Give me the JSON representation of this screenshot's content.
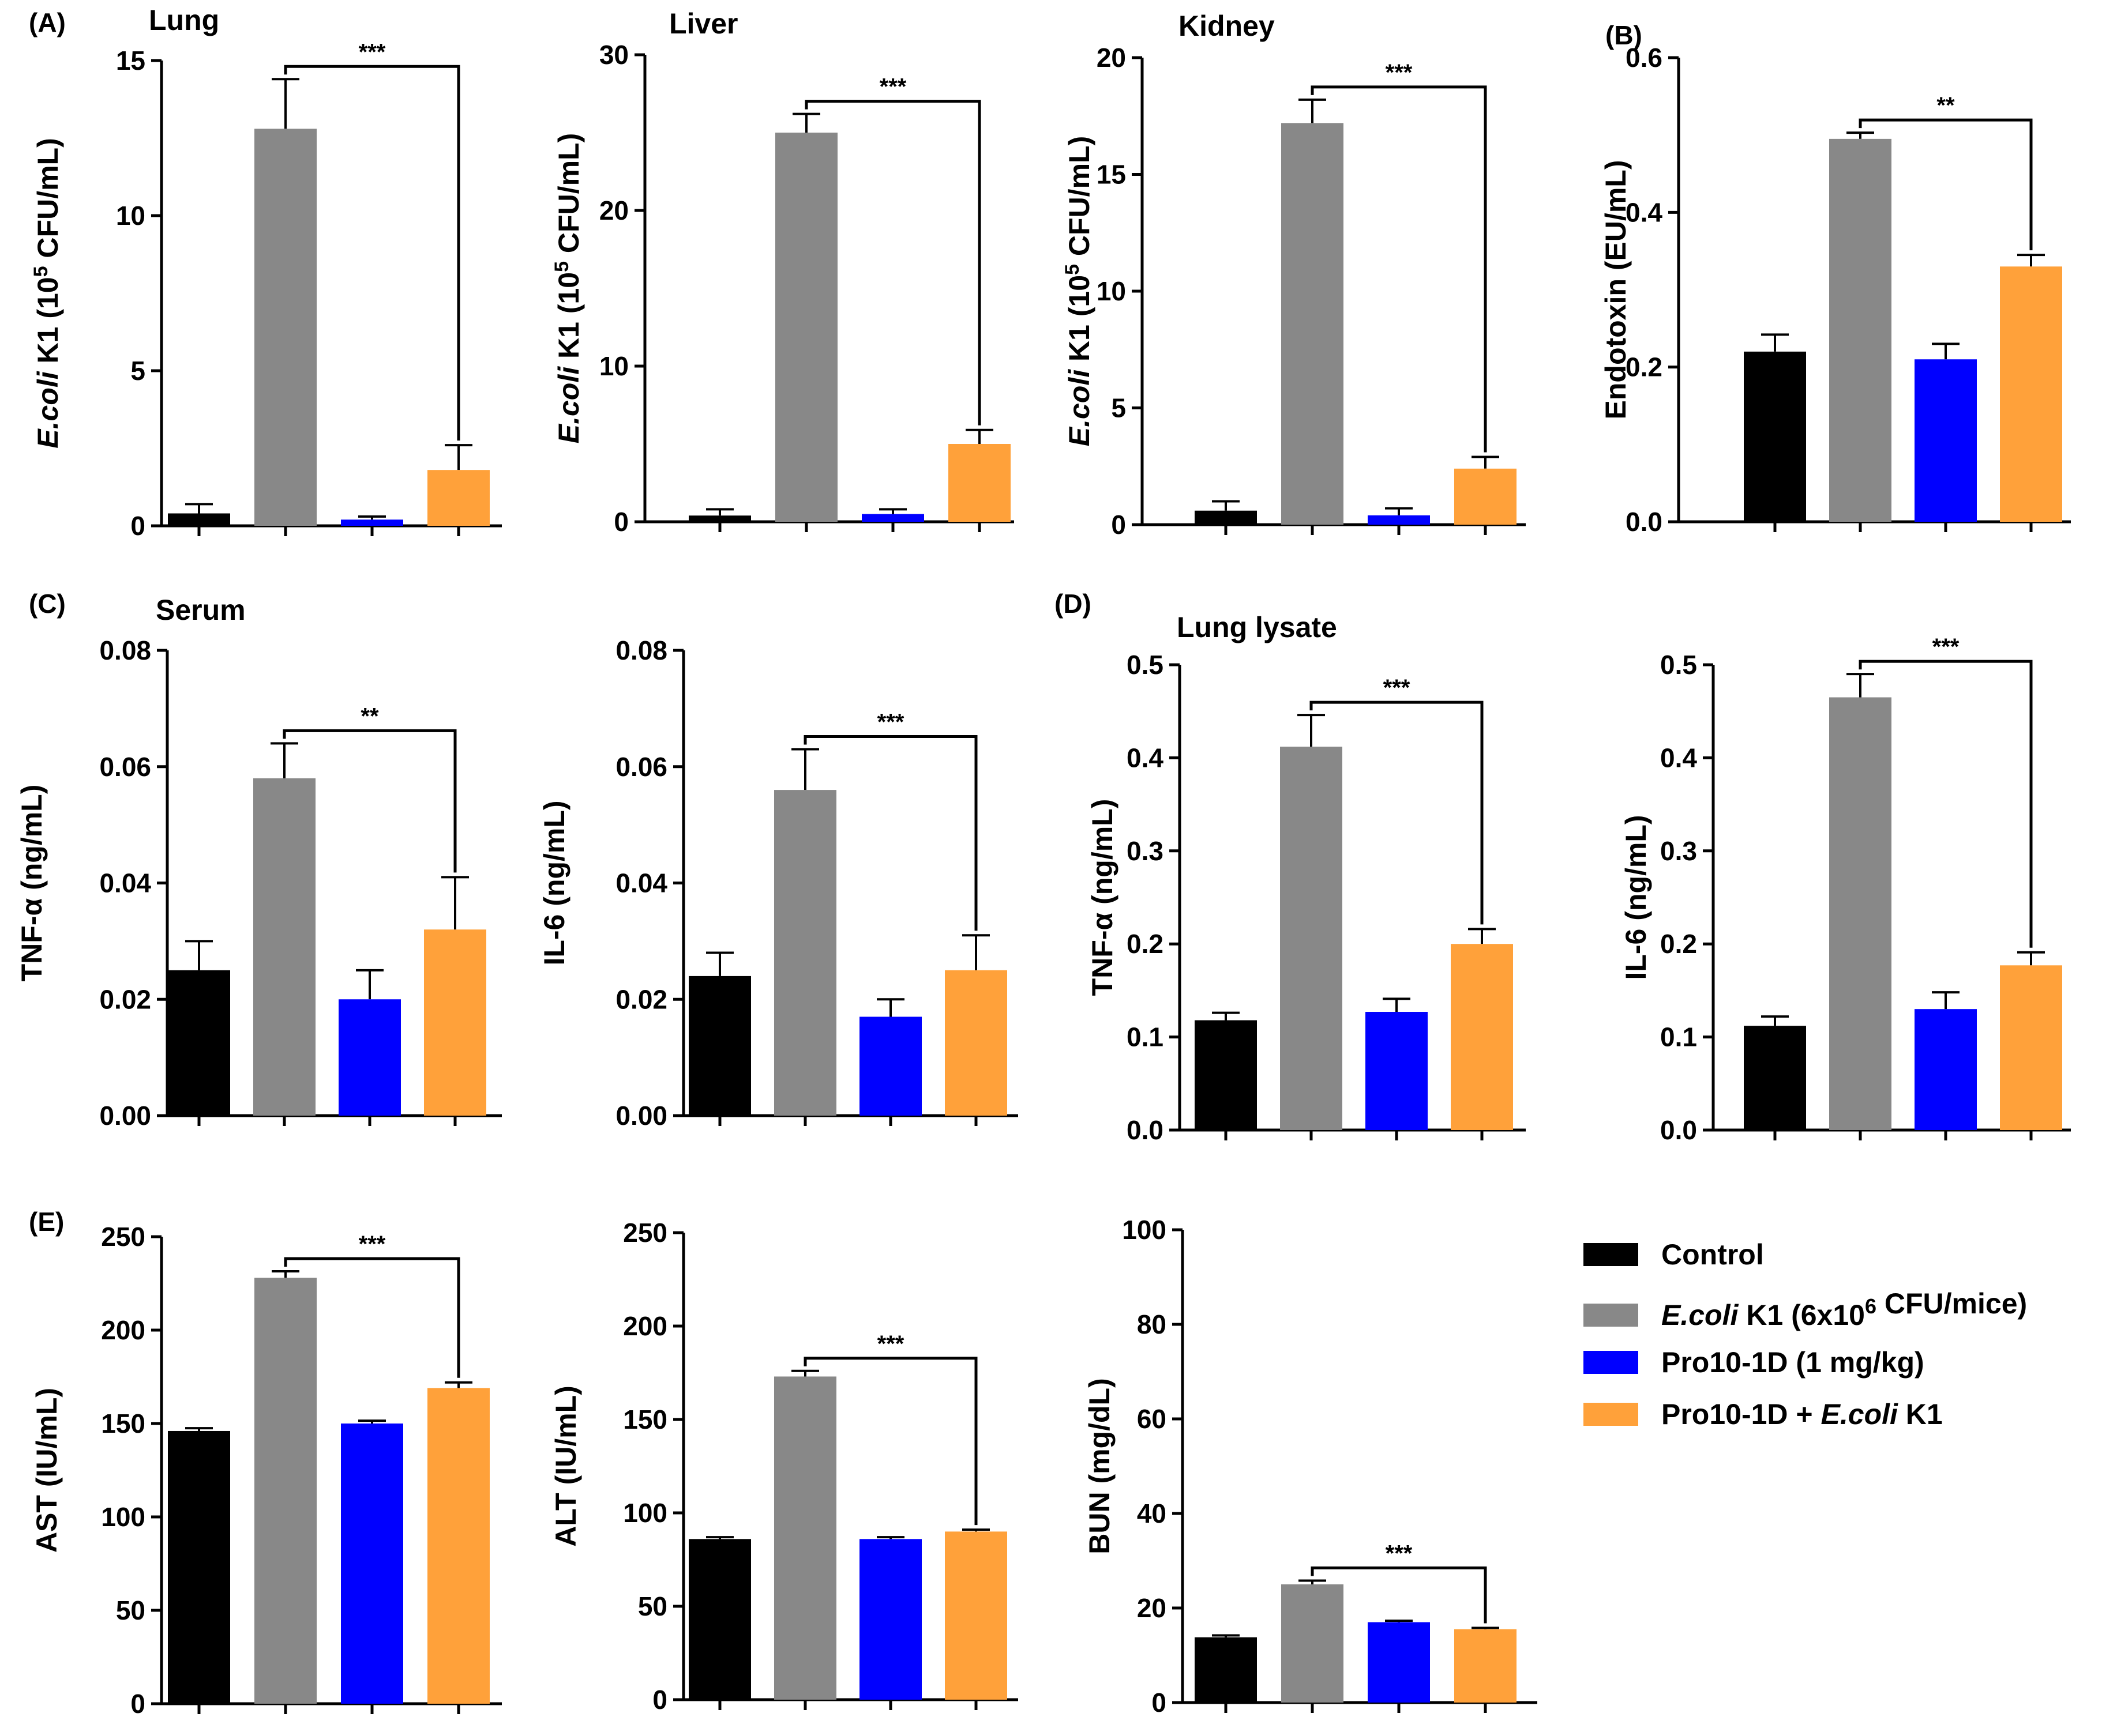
{
  "chart_data": [
    {
      "panel_id": "lung",
      "type": "bar",
      "panel_label": "(A)",
      "title": "Lung",
      "ylabel_prefix": "E.coli",
      "ylabel_text": " K1 (10",
      "ylabel_sup": "5",
      "ylabel_suffix": " CFU/mL)",
      "ylim": [
        0,
        15
      ],
      "yticks": [
        "0",
        "5",
        "10",
        "15"
      ],
      "categories": [
        "Control",
        "E.coli K1 (6x10^6 CFU/mice)",
        "Pro10-1D (1 mg/kg)",
        "Pro10-1D + E.coli K1"
      ],
      "values": [
        0.4,
        12.8,
        0.2,
        1.8
      ],
      "errors": [
        0.3,
        1.6,
        0.1,
        0.8
      ],
      "significance": {
        "from": 1,
        "to": 3,
        "label": "***"
      }
    },
    {
      "panel_id": "liver",
      "type": "bar",
      "title": "Liver",
      "ylabel_prefix": "E.coli",
      "ylabel_text": " K1 (10",
      "ylabel_sup": "5",
      "ylabel_suffix": " CFU/mL)",
      "ylim": [
        0,
        30
      ],
      "yticks": [
        "0",
        "10",
        "20",
        "30"
      ],
      "categories": [
        "Control",
        "E.coli K1 (6x10^6 CFU/mice)",
        "Pro10-1D (1 mg/kg)",
        "Pro10-1D + E.coli K1"
      ],
      "values": [
        0.4,
        25,
        0.5,
        5
      ],
      "errors": [
        0.4,
        1.2,
        0.3,
        0.9
      ],
      "significance": {
        "from": 1,
        "to": 3,
        "label": "***"
      }
    },
    {
      "panel_id": "kidney",
      "type": "bar",
      "title": "Kidney",
      "ylabel_prefix": "E.coli",
      "ylabel_text": " K1 (10",
      "ylabel_sup": "5",
      "ylabel_suffix": " CFU/mL)",
      "ylim": [
        0,
        20
      ],
      "yticks": [
        "0",
        "5",
        "10",
        "15",
        "20"
      ],
      "categories": [
        "Control",
        "E.coli K1 (6x10^6 CFU/mice)",
        "Pro10-1D (1 mg/kg)",
        "Pro10-1D + E.coli K1"
      ],
      "values": [
        0.6,
        17.2,
        0.4,
        2.4
      ],
      "errors": [
        0.4,
        1.0,
        0.3,
        0.5
      ],
      "significance": {
        "from": 1,
        "to": 3,
        "label": "***"
      }
    },
    {
      "panel_id": "endotoxin",
      "type": "bar",
      "panel_label": "(B)",
      "ylabel_text": "Endotoxin (EU/mL)",
      "ylim": [
        0,
        0.6
      ],
      "yticks": [
        "0.0",
        "0.2",
        "0.4",
        "0.6"
      ],
      "categories": [
        "Control",
        "E.coli K1 (6x10^6 CFU/mice)",
        "Pro10-1D (1 mg/kg)",
        "Pro10-1D + E.coli K1"
      ],
      "values": [
        0.22,
        0.495,
        0.21,
        0.33
      ],
      "errors": [
        0.022,
        0.008,
        0.02,
        0.015
      ],
      "significance": {
        "from": 1,
        "to": 3,
        "label": "**"
      }
    },
    {
      "panel_id": "serum_tnf",
      "type": "bar",
      "panel_label": "(C)",
      "title": "Serum",
      "ylabel_text": "TNF-α (ng/mL)",
      "ylim": [
        0,
        0.08
      ],
      "yticks": [
        "0.00",
        "0.02",
        "0.04",
        "0.06",
        "0.08"
      ],
      "categories": [
        "Control",
        "E.coli K1 (6x10^6 CFU/mice)",
        "Pro10-1D (1 mg/kg)",
        "Pro10-1D + E.coli K1"
      ],
      "values": [
        0.025,
        0.058,
        0.02,
        0.032
      ],
      "errors": [
        0.005,
        0.006,
        0.005,
        0.009
      ],
      "significance": {
        "from": 1,
        "to": 3,
        "label": "**"
      }
    },
    {
      "panel_id": "serum_il6",
      "type": "bar",
      "ylabel_text": "IL-6 (ng/mL)",
      "ylim": [
        0,
        0.08
      ],
      "yticks": [
        "0.00",
        "0.02",
        "0.04",
        "0.06",
        "0.08"
      ],
      "categories": [
        "Control",
        "E.coli K1 (6x10^6 CFU/mice)",
        "Pro10-1D (1 mg/kg)",
        "Pro10-1D + E.coli K1"
      ],
      "values": [
        0.024,
        0.056,
        0.017,
        0.025
      ],
      "errors": [
        0.004,
        0.007,
        0.003,
        0.006
      ],
      "significance": {
        "from": 1,
        "to": 3,
        "label": "***"
      }
    },
    {
      "panel_id": "lung_tnf",
      "type": "bar",
      "panel_label": "(D)",
      "title": "Lung lysate",
      "ylabel_text": "TNF-α (ng/mL)",
      "ylim": [
        0,
        0.5
      ],
      "yticks": [
        "0.0",
        "0.1",
        "0.2",
        "0.3",
        "0.4",
        "0.5"
      ],
      "categories": [
        "Control",
        "E.coli K1 (6x10^6 CFU/mice)",
        "Pro10-1D (1 mg/kg)",
        "Pro10-1D + E.coli K1"
      ],
      "values": [
        0.118,
        0.412,
        0.127,
        0.2
      ],
      "errors": [
        0.008,
        0.034,
        0.014,
        0.016
      ],
      "significance": {
        "from": 1,
        "to": 3,
        "label": "***"
      }
    },
    {
      "panel_id": "lung_il6",
      "type": "bar",
      "ylabel_text": "IL-6 (ng/mL)",
      "ylim": [
        0,
        0.5
      ],
      "yticks": [
        "0.0",
        "0.1",
        "0.2",
        "0.3",
        "0.4",
        "0.5"
      ],
      "categories": [
        "Control",
        "E.coli K1 (6x10^6 CFU/mice)",
        "Pro10-1D (1 mg/kg)",
        "Pro10-1D + E.coli K1"
      ],
      "values": [
        0.112,
        0.465,
        0.13,
        0.177
      ],
      "errors": [
        0.01,
        0.025,
        0.018,
        0.014
      ],
      "significance": {
        "from": 1,
        "to": 3,
        "label": "***"
      }
    },
    {
      "panel_id": "ast",
      "type": "bar",
      "panel_label": "(E)",
      "ylabel_text": "AST (IU/mL)",
      "ylim": [
        0,
        250
      ],
      "yticks": [
        "0",
        "50",
        "100",
        "150",
        "200",
        "250"
      ],
      "categories": [
        "Control",
        "E.coli K1 (6x10^6 CFU/mice)",
        "Pro10-1D (1 mg/kg)",
        "Pro10-1D + E.coli K1"
      ],
      "values": [
        146,
        228,
        150,
        169
      ],
      "errors": [
        1.5,
        3.5,
        1.5,
        3
      ],
      "significance": {
        "from": 1,
        "to": 3,
        "label": "***"
      }
    },
    {
      "panel_id": "alt",
      "type": "bar",
      "ylabel_text": "ALT (IU/mL)",
      "ylim": [
        0,
        250
      ],
      "yticks": [
        "0",
        "50",
        "100",
        "150",
        "200",
        "250"
      ],
      "categories": [
        "Control",
        "E.coli K1 (6x10^6 CFU/mice)",
        "Pro10-1D (1 mg/kg)",
        "Pro10-1D + E.coli K1"
      ],
      "values": [
        86,
        173,
        86,
        90
      ],
      "errors": [
        1,
        3,
        1,
        1
      ],
      "significance": {
        "from": 1,
        "to": 3,
        "label": "***"
      }
    },
    {
      "panel_id": "bun",
      "type": "bar",
      "ylabel_text": "BUN (mg/dL)",
      "ylim": [
        0,
        100
      ],
      "yticks": [
        "0",
        "20",
        "40",
        "60",
        "80",
        "100"
      ],
      "categories": [
        "Control",
        "E.coli K1 (6x10^6 CFU/mice)",
        "Pro10-1D (1 mg/kg)",
        "Pro10-1D + E.coli K1"
      ],
      "values": [
        13.8,
        25,
        17,
        15.5
      ],
      "errors": [
        0.4,
        0.8,
        0.3,
        0.3
      ],
      "significance": {
        "from": 1,
        "to": 3,
        "label": "***"
      }
    }
  ],
  "legend": {
    "items": [
      {
        "color": "#000000",
        "parts": [
          {
            "t": "Control",
            "i": false
          }
        ]
      },
      {
        "color": "#888888",
        "parts": [
          {
            "t": "E.coli",
            "i": true
          },
          {
            "t": " K1 (6x10",
            "i": false
          },
          {
            "t": "6",
            "i": false,
            "sup": true
          },
          {
            "t": " CFU/mice)",
            "i": false
          }
        ]
      },
      {
        "color": "#0000ff",
        "parts": [
          {
            "t": "Pro10-1D (1 mg/kg)",
            "i": false
          }
        ]
      },
      {
        "color": "#ffa13a",
        "parts": [
          {
            "t": "Pro10-1D + ",
            "i": false
          },
          {
            "t": "E.coli",
            "i": true
          },
          {
            "t": " K1",
            "i": false
          }
        ]
      }
    ]
  },
  "colors": {
    "bars": [
      "#000000",
      "#888888",
      "#0000ff",
      "#ffa13a"
    ],
    "axis": "#000000"
  }
}
